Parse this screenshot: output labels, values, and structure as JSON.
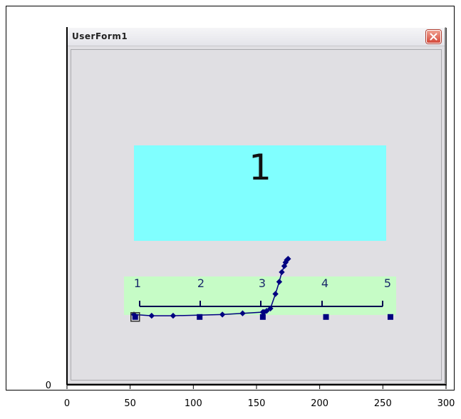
{
  "form": {
    "title": "UserForm1",
    "big_number": "1",
    "scale_labels": [
      "1",
      "2",
      "3",
      "4",
      "5"
    ]
  },
  "icons": {
    "close": "close-icon"
  },
  "colors": {
    "series": "#000080",
    "cyan_panel": "#80ffff",
    "green_panel": "#c6fcc6",
    "form_bg": "#e0dfe3",
    "close_button": "#d4483a"
  },
  "chart_data": {
    "type": "scatter",
    "title": "",
    "xlabel": "",
    "ylabel": "",
    "xlim": [
      0,
      300
    ],
    "x_ticks": [
      0,
      50,
      100,
      150,
      200,
      250,
      300
    ],
    "y_ticks": [
      0
    ],
    "grid": false,
    "series": [
      {
        "marker": "diamond",
        "line": true,
        "points": [
          [
            53,
            58
          ],
          [
            67,
            57
          ],
          [
            84,
            57
          ],
          [
            123,
            58
          ],
          [
            139,
            59
          ],
          [
            155,
            60
          ],
          [
            156,
            60
          ],
          [
            158,
            61
          ],
          [
            161,
            63
          ],
          [
            165,
            75
          ],
          [
            168,
            85
          ],
          [
            170,
            93
          ],
          [
            172,
            98
          ],
          [
            173,
            101
          ],
          [
            174,
            103
          ],
          [
            175,
            104
          ]
        ]
      },
      {
        "marker": "square",
        "line": false,
        "points": [
          [
            54,
            56
          ],
          [
            105,
            56
          ],
          [
            155,
            56
          ],
          [
            205,
            56
          ],
          [
            256,
            56
          ]
        ]
      }
    ]
  }
}
